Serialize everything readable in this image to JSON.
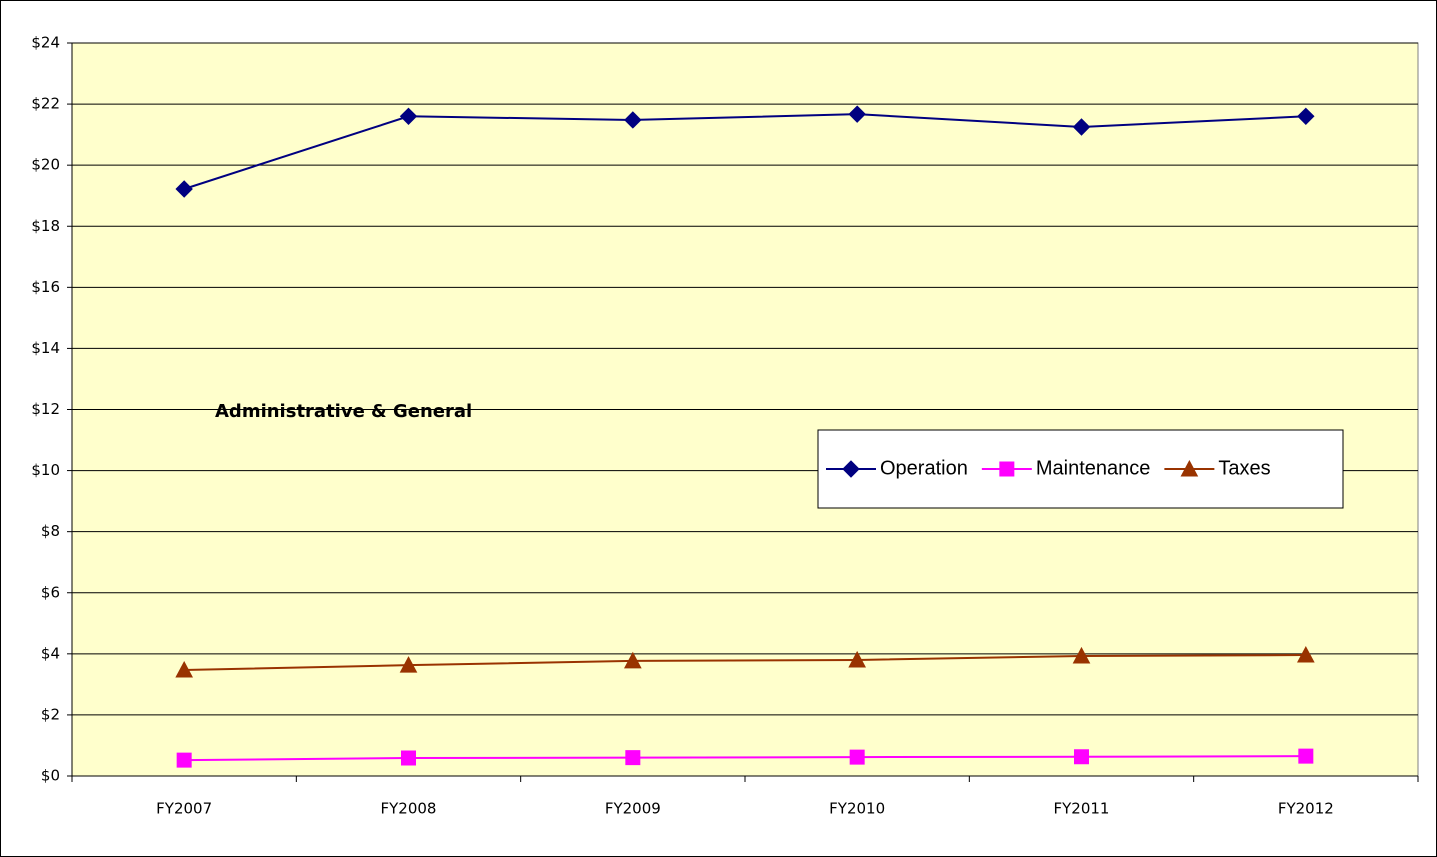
{
  "chart_data": {
    "type": "line",
    "annotation": "Administrative & General",
    "categories": [
      "FY2007",
      "FY2008",
      "FY2009",
      "FY2010",
      "FY2011",
      "FY2012"
    ],
    "series": [
      {
        "name": "Operation",
        "color": "#000080",
        "marker": "diamond",
        "values": [
          19.22,
          21.6,
          21.48,
          21.67,
          21.25,
          21.6
        ]
      },
      {
        "name": "Maintenance",
        "color": "#ff00ff",
        "marker": "square",
        "values": [
          0.52,
          0.59,
          0.6,
          0.62,
          0.63,
          0.65
        ]
      },
      {
        "name": "Taxes",
        "color": "#993300",
        "marker": "triangle",
        "values": [
          3.47,
          3.63,
          3.77,
          3.8,
          3.93,
          3.96
        ]
      }
    ],
    "ylim": [
      0,
      24
    ],
    "yticks": [
      {
        "value": 0,
        "label": "$0"
      },
      {
        "value": 2,
        "label": "$2"
      },
      {
        "value": 4,
        "label": "$4"
      },
      {
        "value": 6,
        "label": "$6"
      },
      {
        "value": 8,
        "label": "$8"
      },
      {
        "value": 10,
        "label": "$10"
      },
      {
        "value": 12,
        "label": "$12"
      },
      {
        "value": 14,
        "label": "$14"
      },
      {
        "value": 16,
        "label": "$16"
      },
      {
        "value": 18,
        "label": "$18"
      },
      {
        "value": 20,
        "label": "$20"
      },
      {
        "value": 22,
        "label": "$22"
      },
      {
        "value": 24,
        "label": "$24"
      }
    ],
    "grid": true,
    "legend": "right",
    "background": "#ffffcc"
  }
}
